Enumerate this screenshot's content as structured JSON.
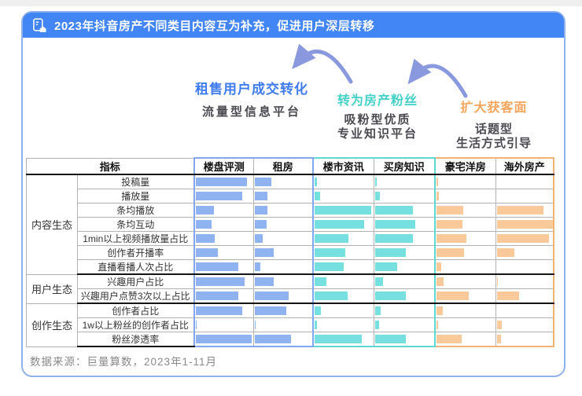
{
  "title": "2023年抖音房产不同类目内容互为补充，促进用户深层转移",
  "title_bar_color": "#4285f4",
  "source": "数据来源：巨量算数，2023年1-11月",
  "flow": {
    "arrow_color": "#8a99dd",
    "stages": [
      {
        "headline": "租售用户成交转化",
        "headline_color": "#3e7bee",
        "lines": [
          "流量型信息平台"
        ]
      },
      {
        "headline": "转为房产粉丝",
        "headline_color": "#45d0c8",
        "lines": [
          "吸粉型优质",
          "专业知识平台"
        ]
      },
      {
        "headline": "扩大获客面",
        "headline_color": "#f6a55c",
        "lines": [
          "话题型",
          "生活方式引导"
        ]
      }
    ]
  },
  "chart_data": {
    "type": "bar",
    "orientation": "horizontal",
    "note": "values are relative bar lengths in % of column width; no numeric axis shown in source",
    "metric_header": "指标",
    "columns": [
      {
        "name": "楼盘评测",
        "bar_color": "#8fb2f0",
        "group_color": "#7fa9ec",
        "edge": "start"
      },
      {
        "name": "租房",
        "bar_color": "#8fb2f0",
        "group_color": "#7fa9ec",
        "edge": "end"
      },
      {
        "name": "楼市资讯",
        "bar_color": "#76dfdf",
        "group_color": "#5fd8d2",
        "edge": "start"
      },
      {
        "name": "买房知识",
        "bar_color": "#76dfdf",
        "group_color": "#5fd8d2",
        "edge": "end"
      },
      {
        "name": "豪宅洋房",
        "bar_color": "#f9c99a",
        "group_color": "#f3b377",
        "edge": "start"
      },
      {
        "name": "海外房产",
        "bar_color": "#f9c99a",
        "group_color": "#f3b377",
        "edge": "end"
      }
    ],
    "row_groups": [
      {
        "name": "内容生态",
        "rows": [
          {
            "label": "投稿量",
            "values": [
              88,
              29,
              4,
              3,
              3,
              0
            ]
          },
          {
            "label": "播放量",
            "values": [
              80,
              22,
              10,
              8,
              4,
              0
            ]
          },
          {
            "label": "条均播放",
            "values": [
              31,
              22,
              95,
              64,
              45,
              83
            ]
          },
          {
            "label": "条均互动",
            "values": [
              28,
              21,
              83,
              67,
              44,
              99
            ]
          },
          {
            "label": "1min以上视频播放量占比",
            "values": [
              33,
              13,
              57,
              64,
              50,
              93
            ]
          },
          {
            "label": "创作者开播率",
            "values": [
              38,
              32,
              51,
              51,
              46,
              31
            ]
          },
          {
            "label": "直播看播人次占比",
            "values": [
              73,
              10,
              49,
              37,
              9,
              0
            ]
          }
        ]
      },
      {
        "name": "用户生态",
        "rows": [
          {
            "label": "兴趣用户占比",
            "values": [
              84,
              33,
              20,
              13,
              12,
              2
            ]
          },
          {
            "label": "兴趣用户点赞3次以上占比",
            "values": [
              73,
              58,
              56,
              51,
              54,
              39
            ]
          }
        ]
      },
      {
        "name": "创作生态",
        "rows": [
          {
            "label": "创作者占比",
            "values": [
              80,
              55,
              11,
              9,
              11,
              0
            ]
          },
          {
            "label": "1w以上粉丝的创作者占比",
            "values": [
              2,
              2,
              5,
              7,
              3,
              9
            ]
          },
          {
            "label": "粉丝渗透率",
            "values": [
              96,
              62,
              79,
              51,
              43,
              7
            ]
          }
        ]
      }
    ]
  }
}
